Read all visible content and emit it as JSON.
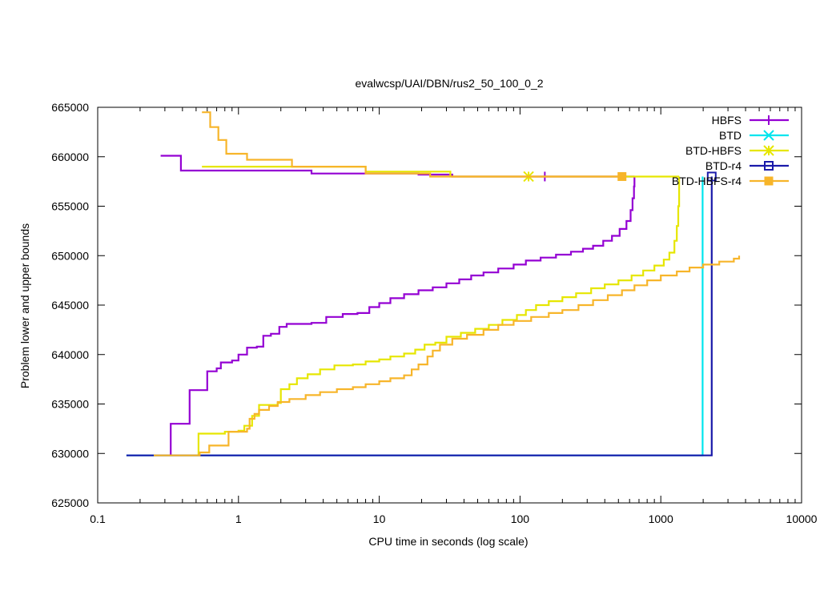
{
  "chart_data": {
    "type": "line",
    "title": "evalwcsp/UAI/DBN/rus2_50_100_0_2",
    "xlabel": "CPU time in seconds (log scale)",
    "ylabel": "Problem lower and upper bounds",
    "xscale": "log",
    "xlim": [
      0.1,
      10000
    ],
    "ylim": [
      625000,
      665000
    ],
    "xticks": [
      0.1,
      1,
      10,
      100,
      1000,
      10000
    ],
    "xtick_labels": [
      "0.1",
      "1",
      "10",
      "100",
      "1000",
      "10000"
    ],
    "yticks": [
      625000,
      630000,
      635000,
      640000,
      645000,
      650000,
      655000,
      660000,
      665000
    ],
    "ytick_labels": [
      "625000",
      "630000",
      "635000",
      "640000",
      "645000",
      "650000",
      "655000",
      "660000",
      "665000"
    ],
    "grid": false,
    "legend_position": "top-right",
    "series": [
      {
        "name": "HBFS",
        "color": "#9400d3",
        "marker": "plus",
        "marker_x": [
          150
        ],
        "marker_y": [
          658000
        ],
        "upper": [
          [
            0.28,
            660100
          ],
          [
            0.39,
            660100
          ],
          [
            0.39,
            658600
          ],
          [
            3.3,
            658600
          ],
          [
            3.3,
            658300
          ],
          [
            19,
            658300
          ],
          [
            19,
            658200
          ],
          [
            33,
            658200
          ],
          [
            33,
            658000
          ],
          [
            650,
            658000
          ]
        ],
        "lower": [
          [
            0.33,
            629800
          ],
          [
            0.33,
            633000
          ],
          [
            0.45,
            633000
          ],
          [
            0.45,
            636400
          ],
          [
            0.55,
            636400
          ],
          [
            0.6,
            638300
          ],
          [
            0.7,
            638600
          ],
          [
            0.75,
            639200
          ],
          [
            0.9,
            639400
          ],
          [
            1.0,
            640000
          ],
          [
            1.15,
            640700
          ],
          [
            1.35,
            640800
          ],
          [
            1.5,
            641900
          ],
          [
            1.7,
            642100
          ],
          [
            1.95,
            642800
          ],
          [
            2.2,
            643100
          ],
          [
            3.3,
            643200
          ],
          [
            4.2,
            643800
          ],
          [
            5.5,
            644100
          ],
          [
            7.0,
            644200
          ],
          [
            8.5,
            644800
          ],
          [
            10,
            645200
          ],
          [
            12,
            645700
          ],
          [
            15,
            646100
          ],
          [
            19,
            646500
          ],
          [
            24,
            646800
          ],
          [
            30,
            647200
          ],
          [
            37,
            647600
          ],
          [
            45,
            648000
          ],
          [
            55,
            648300
          ],
          [
            70,
            648700
          ],
          [
            90,
            649100
          ],
          [
            110,
            649500
          ],
          [
            140,
            649800
          ],
          [
            180,
            650100
          ],
          [
            230,
            650400
          ],
          [
            280,
            650700
          ],
          [
            330,
            651000
          ],
          [
            390,
            651500
          ],
          [
            450,
            652000
          ],
          [
            510,
            652700
          ],
          [
            570,
            653500
          ],
          [
            610,
            654600
          ],
          [
            630,
            655800
          ],
          [
            645,
            657000
          ],
          [
            650,
            658000
          ]
        ]
      },
      {
        "name": "BTD",
        "color": "#00e5ee",
        "marker": "x",
        "marker_x": [],
        "marker_y": [],
        "upper": [
          [
            1980,
            658000
          ],
          [
            1980,
            658000
          ]
        ],
        "lower": [
          [
            0.16,
            629800
          ],
          [
            1980,
            629800
          ],
          [
            1980,
            658000
          ]
        ]
      },
      {
        "name": "BTD-HBFS",
        "color": "#e6e600",
        "marker": "star",
        "marker_x": [
          115
        ],
        "marker_y": [
          658000
        ],
        "upper": [
          [
            0.55,
            659000
          ],
          [
            8,
            659000
          ],
          [
            8,
            658500
          ],
          [
            32,
            658500
          ],
          [
            32,
            658000
          ],
          [
            1350,
            658000
          ]
        ],
        "lower": [
          [
            0.52,
            629800
          ],
          [
            0.52,
            632000
          ],
          [
            0.8,
            632000
          ],
          [
            0.8,
            632200
          ],
          [
            1.0,
            632300
          ],
          [
            1.1,
            632800
          ],
          [
            1.25,
            633800
          ],
          [
            1.4,
            634900
          ],
          [
            1.9,
            635100
          ],
          [
            2.0,
            636500
          ],
          [
            2.3,
            637000
          ],
          [
            2.6,
            637600
          ],
          [
            3.1,
            638000
          ],
          [
            3.8,
            638500
          ],
          [
            4.8,
            638900
          ],
          [
            6.5,
            639000
          ],
          [
            8.0,
            639300
          ],
          [
            10,
            639500
          ],
          [
            12,
            639800
          ],
          [
            15,
            640100
          ],
          [
            18,
            640500
          ],
          [
            21,
            641000
          ],
          [
            25,
            641200
          ],
          [
            30,
            641800
          ],
          [
            38,
            642200
          ],
          [
            48,
            642600
          ],
          [
            60,
            643000
          ],
          [
            75,
            643500
          ],
          [
            95,
            644000
          ],
          [
            110,
            644500
          ],
          [
            130,
            645000
          ],
          [
            160,
            645400
          ],
          [
            200,
            645800
          ],
          [
            250,
            646200
          ],
          [
            320,
            646700
          ],
          [
            400,
            647100
          ],
          [
            500,
            647500
          ],
          [
            620,
            648000
          ],
          [
            750,
            648500
          ],
          [
            900,
            649000
          ],
          [
            1050,
            649600
          ],
          [
            1150,
            650300
          ],
          [
            1250,
            651500
          ],
          [
            1300,
            653000
          ],
          [
            1330,
            655000
          ],
          [
            1350,
            657000
          ],
          [
            1350,
            658000
          ]
        ]
      },
      {
        "name": "BTD-r4",
        "color": "#1a1aaa",
        "marker": "square",
        "marker_x": [
          2300
        ],
        "marker_y": [
          658000
        ],
        "upper": [
          [
            2300,
            658000
          ],
          [
            2300,
            658000
          ]
        ],
        "lower": [
          [
            0.16,
            629800
          ],
          [
            2300,
            629800
          ],
          [
            2300,
            658000
          ]
        ]
      },
      {
        "name": "BTD-HBFS-r4",
        "color": "#f7b52a",
        "marker": "filled-square",
        "marker_x": [
          530
        ],
        "marker_y": [
          658000
        ],
        "upper": [
          [
            0.55,
            664500
          ],
          [
            0.63,
            664500
          ],
          [
            0.63,
            663000
          ],
          [
            0.72,
            663000
          ],
          [
            0.72,
            661700
          ],
          [
            0.82,
            661700
          ],
          [
            0.82,
            660300
          ],
          [
            1.15,
            660300
          ],
          [
            1.15,
            659700
          ],
          [
            2.4,
            659700
          ],
          [
            2.4,
            659000
          ],
          [
            8,
            659000
          ],
          [
            8,
            658300
          ],
          [
            23,
            658300
          ],
          [
            23,
            658000
          ],
          [
            530,
            658000
          ]
        ],
        "lower": [
          [
            0.25,
            629800
          ],
          [
            0.53,
            629800
          ],
          [
            0.53,
            630100
          ],
          [
            0.62,
            630100
          ],
          [
            0.62,
            630800
          ],
          [
            0.85,
            630800
          ],
          [
            0.85,
            632200
          ],
          [
            1.0,
            632200
          ],
          [
            1.15,
            632500
          ],
          [
            1.2,
            633500
          ],
          [
            1.3,
            634000
          ],
          [
            1.4,
            634400
          ],
          [
            1.65,
            634800
          ],
          [
            1.9,
            635200
          ],
          [
            2.3,
            635500
          ],
          [
            3.0,
            635900
          ],
          [
            3.8,
            636200
          ],
          [
            5.0,
            636500
          ],
          [
            6.5,
            636700
          ],
          [
            8.0,
            637000
          ],
          [
            10,
            637300
          ],
          [
            12,
            637600
          ],
          [
            15,
            637900
          ],
          [
            17,
            638500
          ],
          [
            19,
            639000
          ],
          [
            22,
            639800
          ],
          [
            24,
            640400
          ],
          [
            27,
            641000
          ],
          [
            33,
            641600
          ],
          [
            42,
            642000
          ],
          [
            55,
            642500
          ],
          [
            70,
            643000
          ],
          [
            90,
            643400
          ],
          [
            120,
            643800
          ],
          [
            160,
            644200
          ],
          [
            200,
            644500
          ],
          [
            260,
            645000
          ],
          [
            330,
            645500
          ],
          [
            420,
            646000
          ],
          [
            530,
            646500
          ],
          [
            650,
            647000
          ],
          [
            800,
            647500
          ],
          [
            1000,
            648000
          ],
          [
            1300,
            648400
          ],
          [
            1600,
            648800
          ],
          [
            2000,
            649100
          ],
          [
            2600,
            649400
          ],
          [
            3300,
            649700
          ],
          [
            3600,
            650000
          ]
        ]
      }
    ]
  }
}
